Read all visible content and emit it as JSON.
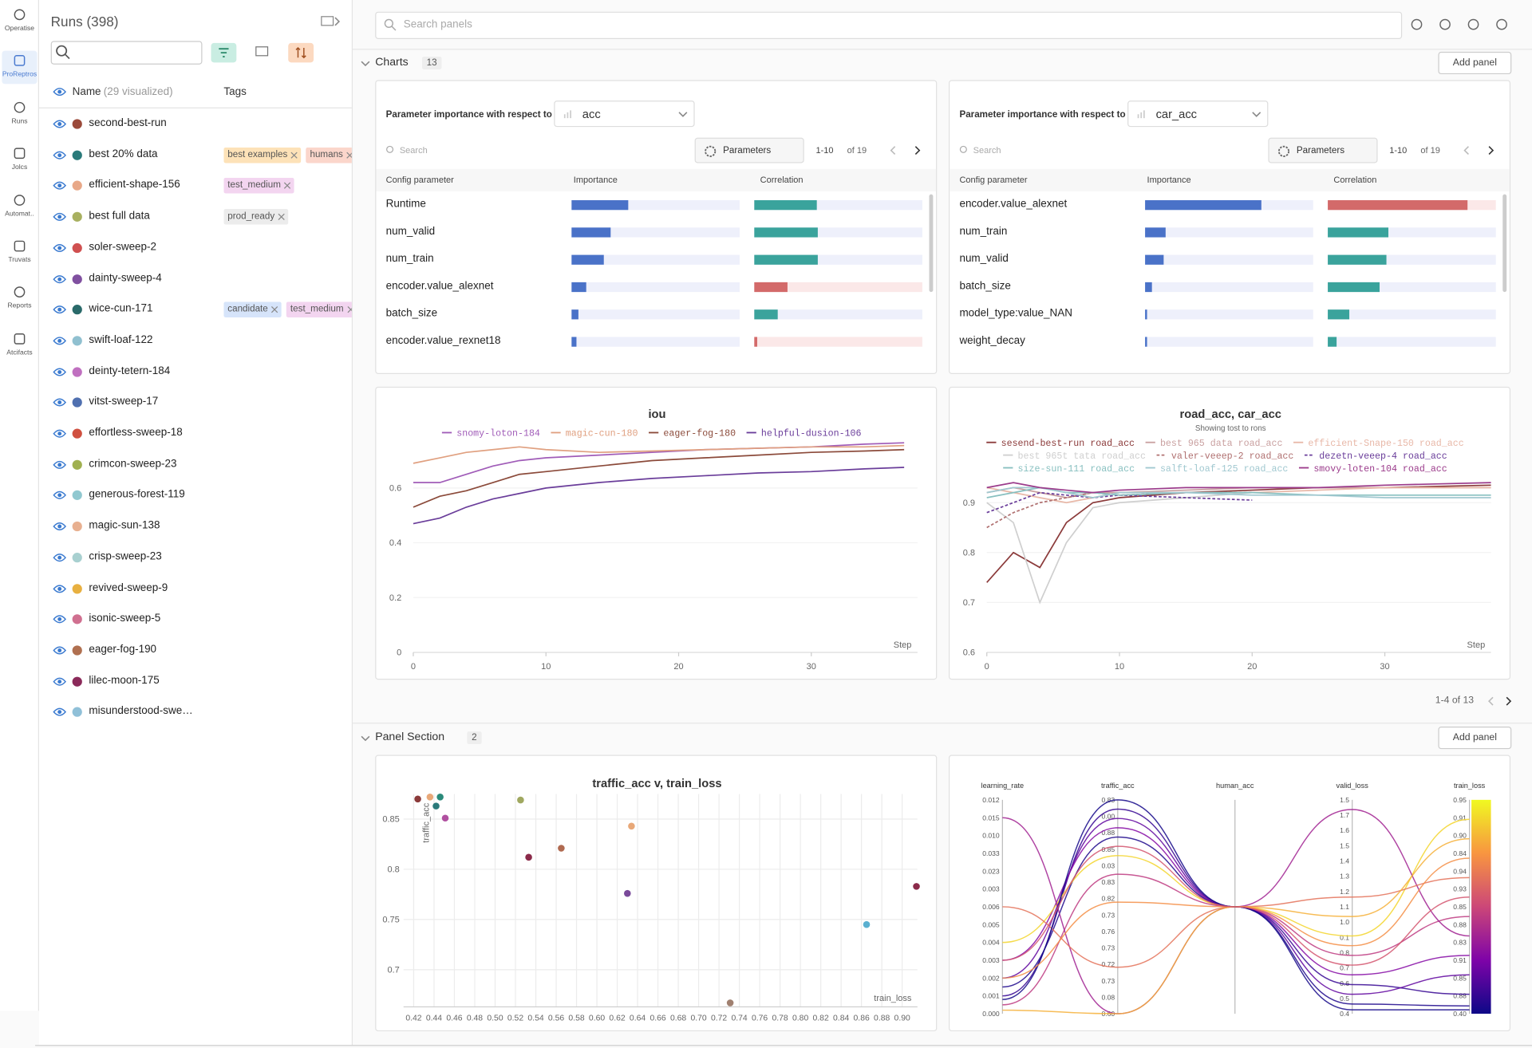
{
  "nav": {
    "items": [
      "Operatise",
      "ProReptros",
      "Runs",
      "Jolcs",
      "Automat..",
      "Truvats",
      "Reports",
      "Atcifacts"
    ]
  },
  "runs": {
    "title": "Runs (398)",
    "name_header": "Name",
    "visualized": "(29 visualized)",
    "tags_header": "Tags",
    "rows": [
      {
        "name": "second-best-run",
        "color": "#9b4a3a",
        "tags": []
      },
      {
        "name": "best 20% data",
        "color": "#2a7a7a",
        "tags": [
          {
            "text": "best examples",
            "color": "#fde2b8"
          },
          {
            "text": "humans",
            "color": "#fbd6cb"
          }
        ]
      },
      {
        "name": "efficient-shape-156",
        "color": "#e8a888",
        "tags": [
          {
            "text": "test_medium",
            "color": "#f3d5f0"
          }
        ]
      },
      {
        "name": "best full data",
        "color": "#a8b060",
        "tags": [
          {
            "text": "prod_ready",
            "color": "#ececec"
          }
        ]
      },
      {
        "name": "soler-sweep-2",
        "color": "#d05050",
        "tags": []
      },
      {
        "name": "dainty-sweep-4",
        "color": "#8050a0",
        "tags": []
      },
      {
        "name": "wice-cun-171",
        "color": "#2a6a6a",
        "tags": [
          {
            "text": "candidate",
            "color": "#d6e4fa"
          },
          {
            "text": "test_medium",
            "color": "#f3d5f0"
          }
        ]
      },
      {
        "name": "swift-loaf-122",
        "color": "#90c0d0",
        "tags": []
      },
      {
        "name": "deinty-tetern-184",
        "color": "#c070c0",
        "tags": []
      },
      {
        "name": "vitst-sweep-17",
        "color": "#5070b0",
        "tags": []
      },
      {
        "name": "effortless-sweep-18",
        "color": "#d05040",
        "tags": []
      },
      {
        "name": "crimcon-sweep-23",
        "color": "#a0b050",
        "tags": []
      },
      {
        "name": "generous-forest-119",
        "color": "#90c8d0",
        "tags": []
      },
      {
        "name": "magic-sun-138",
        "color": "#e8b090",
        "tags": []
      },
      {
        "name": "crisp-sweep-23",
        "color": "#a8d0d0",
        "tags": []
      },
      {
        "name": "revived-sweep-9",
        "color": "#e8b040",
        "tags": []
      },
      {
        "name": "isonic-sweep-5",
        "color": "#d07090",
        "tags": []
      },
      {
        "name": "eager-fog-190",
        "color": "#b07050",
        "tags": []
      },
      {
        "name": "lilec-moon-175",
        "color": "#8b2a5a",
        "tags": []
      },
      {
        "name": "misunderstood-swe…",
        "color": "#90c0d8",
        "tags": []
      }
    ]
  },
  "search_placeholder": "Search panels",
  "charts_section": {
    "title": "Charts",
    "count": 13,
    "button": "Add panel",
    "pagination": "1-4 of 13"
  },
  "panel_section": {
    "title": "Panel Section",
    "count": 2,
    "button": "Add panel"
  },
  "importance_colors": {
    "importance": "#4a72c8",
    "positive": "#3aa39c",
    "negative": "#d36a6a"
  },
  "importance_panels": [
    {
      "title": "Parameter importance with respect to",
      "metric": "acc",
      "search": "Search",
      "button": "Parameters",
      "range": "1-10",
      "total": "of 19",
      "headers": [
        "Config parameter",
        "Importance",
        "Correlation"
      ],
      "rows": [
        {
          "name": "Runtime",
          "importance": 0.34,
          "correlation": 0.37
        },
        {
          "name": "num_valid",
          "importance": 0.23,
          "correlation": 0.38
        },
        {
          "name": "num_train",
          "importance": 0.19,
          "correlation": 0.38
        },
        {
          "name": "encoder.value_alexnet",
          "importance": 0.09,
          "correlation": -0.2
        },
        {
          "name": "batch_size",
          "importance": 0.04,
          "correlation": 0.14
        },
        {
          "name": "encoder.value_rexnet18",
          "importance": 0.03,
          "correlation": -0.02
        }
      ]
    },
    {
      "title": "Parameter importance with respect to",
      "metric": "car_acc",
      "search": "Search",
      "button": "Parameters",
      "range": "1-10",
      "total": "of 19",
      "headers": [
        "Config parameter",
        "Importance",
        "Correlation"
      ],
      "rows": [
        {
          "name": "encoder.value_alexnet",
          "importance": 0.69,
          "correlation": -0.83
        },
        {
          "name": "num_train",
          "importance": 0.12,
          "correlation": 0.36
        },
        {
          "name": "num_valid",
          "importance": 0.11,
          "correlation": 0.35
        },
        {
          "name": "batch_size",
          "importance": 0.04,
          "correlation": 0.31
        },
        {
          "name": "model_type:value_NAN",
          "importance": 0.01,
          "correlation": 0.13
        },
        {
          "name": "weight_decay",
          "importance": 0.01,
          "correlation": 0.05
        }
      ]
    }
  ],
  "chart_data": [
    {
      "type": "line",
      "title": "iou",
      "x_label": "Step",
      "x": [
        0,
        2,
        4,
        6,
        8,
        10,
        14,
        18,
        22,
        26,
        30,
        34,
        37
      ],
      "xlim": [
        0,
        38
      ],
      "xticks": [
        0,
        10,
        20,
        30
      ],
      "ylim": [
        0,
        0.77
      ],
      "yticks": [
        0,
        0.2,
        0.4,
        0.6
      ],
      "series": [
        {
          "name": "snomy-loton-184",
          "color": "#a05cb8",
          "values": [
            0.62,
            0.62,
            0.65,
            0.68,
            0.7,
            0.71,
            0.72,
            0.73,
            0.74,
            0.745,
            0.75,
            0.76,
            0.765
          ]
        },
        {
          "name": "magic-cun-180",
          "color": "#e0a080",
          "values": [
            0.69,
            0.71,
            0.73,
            0.74,
            0.75,
            0.74,
            0.73,
            0.735,
            0.74,
            0.745,
            0.75,
            0.75,
            0.755
          ]
        },
        {
          "name": "eager-fog-180",
          "color": "#8b4a3a",
          "values": [
            0.53,
            0.57,
            0.59,
            0.62,
            0.65,
            0.66,
            0.68,
            0.7,
            0.71,
            0.72,
            0.73,
            0.735,
            0.74
          ]
        },
        {
          "name": "helpful-dusion-106",
          "color": "#6a3d9a",
          "values": [
            0.47,
            0.49,
            0.53,
            0.56,
            0.58,
            0.6,
            0.62,
            0.635,
            0.645,
            0.655,
            0.66,
            0.67,
            0.675
          ]
        }
      ]
    },
    {
      "type": "line",
      "title": "road_acc, car_acc",
      "subtitle": "Showing tost to rons",
      "x_label": "Step",
      "x": [
        0,
        2,
        4,
        6,
        8,
        10,
        15,
        20,
        25,
        30,
        38
      ],
      "xlim": [
        0,
        38
      ],
      "xticks": [
        0,
        10,
        20,
        30
      ],
      "ylim": [
        0.6,
        0.96
      ],
      "yticks": [
        0.6,
        0.7,
        0.8,
        0.9
      ],
      "series": [
        {
          "name": "sesend-best-run road_acc",
          "color": "#8b3a3a",
          "values": [
            0.74,
            0.8,
            0.77,
            0.86,
            0.9,
            0.91,
            0.92,
            0.925,
            0.93,
            0.93,
            0.935
          ]
        },
        {
          "name": "best 965 data road_acc",
          "color": "#c9a0a0",
          "values": [
            0.92,
            0.93,
            0.92,
            0.91,
            0.92,
            0.92,
            0.925,
            0.93,
            0.93,
            0.93,
            0.93
          ]
        },
        {
          "name": "efficient-Snape-150 road_acc",
          "color": "#e8b8a8",
          "values": [
            0.93,
            0.92,
            0.91,
            0.9,
            0.91,
            0.92,
            0.92,
            0.92,
            0.925,
            0.93,
            0.93
          ]
        },
        {
          "name": "best 965t tata road_acc",
          "color": "#cfcfcf",
          "values": [
            0.9,
            0.86,
            0.7,
            0.82,
            0.89,
            0.9,
            0.91,
            0.92,
            null,
            null,
            null
          ]
        },
        {
          "name": "valer-veeep-2 road_acc",
          "color": "#b07070",
          "dash": true,
          "values": [
            0.85,
            0.88,
            0.9,
            0.91,
            0.92,
            0.915,
            0.92,
            0.92,
            null,
            null,
            null
          ]
        },
        {
          "name": "dezetn-veeep-4 road_acc",
          "color": "#6a3d9a",
          "dash": true,
          "values": [
            0.88,
            0.9,
            0.92,
            0.915,
            0.91,
            0.915,
            0.91,
            0.905,
            null,
            null,
            null
          ]
        },
        {
          "name": "size-sun-111 road_acc",
          "color": "#88c0c0",
          "values": [
            0.91,
            0.92,
            0.93,
            0.92,
            0.92,
            0.915,
            0.92,
            0.92,
            0.915,
            0.915,
            0.915
          ]
        },
        {
          "name": "salft-loaf-125 road_acc",
          "color": "#a0c8d0",
          "values": [
            0.92,
            0.93,
            0.93,
            0.92,
            0.91,
            0.92,
            0.92,
            0.915,
            0.915,
            0.91,
            0.91
          ]
        },
        {
          "name": "smovy-loten-104 road_acc",
          "color": "#9b3b8b",
          "values": [
            0.93,
            0.94,
            0.93,
            0.925,
            0.92,
            0.925,
            0.93,
            0.93,
            0.93,
            0.935,
            0.94
          ]
        }
      ]
    },
    {
      "type": "scatter",
      "title": "traffic_acc v, train_loss",
      "x_label": "train_loss",
      "y_label": "traffic_acc",
      "xlim": [
        0.41,
        0.915
      ],
      "ylim": [
        0.663,
        0.875
      ],
      "xticks": [
        0.42,
        0.44,
        0.46,
        0.48,
        {
          "value": 0.5,
          "label": "0.50"
        },
        0.52,
        0.54,
        0.56,
        0.58,
        {
          "value": 0.6,
          "label": "0.60"
        },
        0.62,
        0.64,
        0.66,
        0.68,
        {
          "value": 0.7,
          "label": "0.70"
        },
        0.72,
        0.74,
        0.76,
        0.78,
        {
          "value": 0.8,
          "label": "0.80"
        },
        0.82,
        0.84,
        0.86,
        0.88,
        {
          "value": 0.9,
          "label": "0.90"
        }
      ],
      "yticks": [
        0.7,
        0.75,
        0.8,
        0.85
      ],
      "grid": true,
      "x": [
        0.424,
        0.436,
        0.442,
        0.446,
        0.451,
        0.525,
        0.533,
        0.565,
        0.634,
        0.63,
        0.914,
        0.865,
        0.731
      ],
      "values": [
        0.87,
        0.872,
        0.863,
        0.872,
        0.851,
        0.869,
        0.812,
        0.821,
        0.843,
        0.776,
        0.783,
        0.745,
        0.667
      ],
      "colors": [
        "#8b3a3a",
        "#e8a878",
        "#2a7a7a",
        "#2a8a7a",
        "#b050a0",
        "#a0a860",
        "#8b2a4a",
        "#b06a50",
        "#e8a878",
        "#7a4a9a",
        "#8b2a4a",
        "#5ab0d0",
        "#a08070"
      ]
    },
    {
      "type": "parallel",
      "colorscale": [
        "#0d0887",
        "#7e03a8",
        "#cc4778",
        "#f89540",
        "#f0f921"
      ],
      "dimensions": [
        {
          "name": "learning_rate",
          "lim": [
            0,
            0.012
          ],
          "tick_labels": [
            "0.012",
            "0.015",
            "0.010",
            "0.033",
            "0.023",
            "0.003",
            "0.006",
            "0.005",
            "0.004",
            "0.003",
            "0.002",
            "0.001",
            "0.000"
          ]
        },
        {
          "name": "traffic_acc",
          "lim": [
            0.6,
            0.83
          ],
          "tick_labels": [
            "0.83",
            "0.00",
            "0.88",
            "0.85",
            "0.03",
            "0.83",
            "0.82",
            "0.73",
            "0.76",
            "0.73",
            "0.72",
            "0.73",
            "0.08",
            "0.60"
          ]
        },
        {
          "name": "human_acc"
        },
        {
          "name": "valid_loss",
          "lim": [
            0.4,
            1.5
          ],
          "tick_labels": [
            "1.5",
            "1.7",
            "1.6",
            "1.5",
            "1.4",
            "1.3",
            "1.2",
            "1.1",
            "1.0",
            "0.1",
            "0.8",
            "0.7",
            "0.6",
            "0.5",
            "0.4"
          ]
        },
        {
          "name": "train_loss",
          "lim": [
            0.4,
            0.95
          ],
          "tick_labels": [
            "0.95",
            "0.91",
            "0.90",
            "0.84",
            "0.94",
            "0.93",
            "0.85",
            "0.88",
            "0.83",
            "0.91",
            "0.85",
            "0.88",
            "0.40"
          ]
        }
      ],
      "lines": [
        [
          0.001,
          0.82,
          0.55,
          0.45
        ],
        [
          0.002,
          0.81,
          0.5,
          0.5
        ],
        [
          0.003,
          0.8,
          0.6,
          0.55
        ],
        [
          0.0015,
          0.79,
          0.45,
          0.42
        ],
        [
          0.004,
          0.77,
          0.8,
          0.9
        ],
        [
          0.0005,
          0.75,
          0.7,
          0.65
        ],
        [
          0.011,
          0.6,
          1.45,
          0.6
        ],
        [
          0.006,
          0.65,
          1.0,
          0.75
        ],
        [
          0.0002,
          0.6,
          0.9,
          0.85
        ],
        [
          0.0008,
          0.83,
          0.42,
          0.41
        ],
        [
          0.002,
          0.72,
          0.75,
          0.8
        ],
        [
          0.003,
          0.78,
          0.65,
          0.7
        ]
      ]
    }
  ]
}
